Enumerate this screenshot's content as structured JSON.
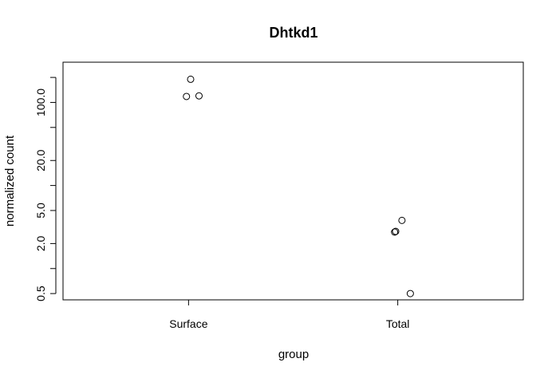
{
  "chart_data": {
    "type": "scatter",
    "title": "Dhtkd1",
    "xlabel": "group",
    "ylabel": "normalized count",
    "y_scale": "log",
    "categories": [
      "Surface",
      "Total"
    ],
    "y_ticks": [
      0.5,
      1,
      2,
      5,
      10,
      20,
      50,
      100,
      200
    ],
    "y_tick_labels": [
      "0.5",
      "",
      "2.0",
      "5.0",
      "",
      "20.0",
      "",
      "100.0",
      ""
    ],
    "ylim": [
      0.42,
      305
    ],
    "grid": false,
    "points": [
      {
        "category": "Surface",
        "x": 1.01,
        "y": 190
      },
      {
        "category": "Surface",
        "x": 0.99,
        "y": 118
      },
      {
        "category": "Surface",
        "x": 1.05,
        "y": 120
      },
      {
        "category": "Total",
        "x": 2.02,
        "y": 3.8
      },
      {
        "category": "Total",
        "x": 1.99,
        "y": 2.8
      },
      {
        "category": "Total",
        "x": 1.985,
        "y": 2.75
      },
      {
        "category": "Total",
        "x": 2.06,
        "y": 0.5
      }
    ]
  }
}
